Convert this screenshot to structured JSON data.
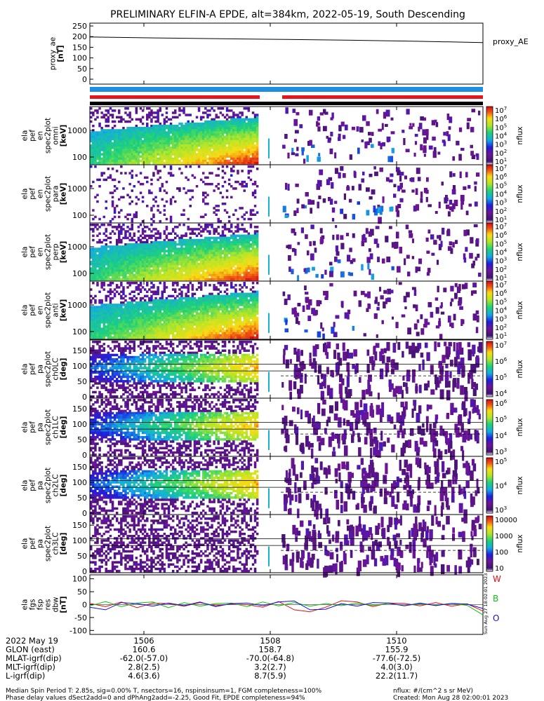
{
  "title": "PRELIMINARY ELFIN-A EPDE, alt=384km, 2022-05-19, South Descending",
  "colors": {
    "red": "#e8141b",
    "blue": "#1e8ee0",
    "line_red": "#e01010",
    "line_green": "#10c010",
    "line_blue": "#1010e0"
  },
  "panels": {
    "proxy": {
      "ylabel": "proxy_ae\n[nT]",
      "legend": "proxy_AE",
      "yticks": [
        "250",
        "200",
        "150",
        "100",
        "50",
        "0"
      ]
    },
    "energy": [
      {
        "ylabel": "ela\npef\nen\nspec2plot\nomni\n[keV]",
        "zlabel": "nflux",
        "yticks": [
          "1000",
          "100"
        ],
        "cticks": [
          "10^7",
          "10^6",
          "10^5",
          "10^4",
          "10^3",
          "10^2",
          "10^1"
        ]
      },
      {
        "ylabel": "ela\npef\nen\nspec2plot\npara\n[keV]",
        "zlabel": "nflux",
        "yticks": [
          "1000",
          "100"
        ],
        "cticks": [
          "10^7",
          "10^6",
          "10^5",
          "10^4",
          "10^3",
          "10^2",
          "10^1"
        ]
      },
      {
        "ylabel": "ela\npef\nen\nspec2plot\nperp\n[keV]",
        "zlabel": "nflux",
        "yticks": [
          "1000",
          "100"
        ],
        "cticks": [
          "10^7",
          "10^6",
          "10^5",
          "10^4",
          "10^3",
          "10^2",
          "10^1"
        ]
      },
      {
        "ylabel": "ela\npef\nen\nspec2plot\nanti\n[keV]",
        "zlabel": "nflux",
        "yticks": [
          "1000",
          "100"
        ],
        "cticks": [
          "10^7",
          "10^6",
          "10^5",
          "10^4",
          "10^3",
          "10^2",
          "10^1"
        ]
      }
    ],
    "pitch": [
      {
        "ylabel": "ela\npef\npa\nspec2plot\nch0LC\n[deg]",
        "zlabel": "nflux",
        "yticks": [
          "150",
          "100",
          "50",
          "0"
        ],
        "cticks": [
          "10^7",
          "10^6",
          "10^5",
          "10^4"
        ]
      },
      {
        "ylabel": "ela\npef\npa\nspec2plot\nch1LC\n[deg]",
        "zlabel": "nflux",
        "yticks": [
          "150",
          "100",
          "50",
          "0"
        ],
        "cticks": [
          "10^6",
          "10^5",
          "10^4",
          "10^3"
        ]
      },
      {
        "ylabel": "ela\npef\npa\nspec2plot\nch2LC\n[deg]",
        "zlabel": "nflux",
        "yticks": [
          "150",
          "100",
          "50",
          "0"
        ],
        "cticks": [
          "10^5",
          "10^4",
          "10^3"
        ]
      },
      {
        "ylabel": "ela\npef\npa\nspec2plot\nch3LC\n[deg]",
        "zlabel": "nflux",
        "yticks": [
          "150",
          "100",
          "50",
          "0"
        ],
        "cticks": [
          "10000",
          "1000",
          "100",
          "10"
        ]
      }
    ],
    "fgs": {
      "ylabel": "ela\nfgs\nfsp\nres\ndbw\n[nT]",
      "yticks": [
        "100",
        "50",
        "0",
        "-50",
        "-100"
      ],
      "legend": [
        "W",
        "B",
        "O"
      ]
    }
  },
  "xaxis": {
    "ticks": [
      "1506",
      "1508",
      "1510"
    ],
    "rows": [
      {
        "label": "2022 May 19",
        "values": [
          "",
          "",
          ""
        ]
      },
      {
        "label": "GLON (east)",
        "values": [
          "160.6",
          "158.7",
          "155.9"
        ]
      },
      {
        "label": "MLAT-igrf(dip)",
        "values": [
          "-62.0(-57.0)",
          "-70.0(-64.8)",
          "-77.6(-72.5)"
        ]
      },
      {
        "label": "MLT-igrf(dip)",
        "values": [
          "2.8(2.5)",
          "3.2(2.7)",
          "4.0(3.0)"
        ]
      },
      {
        "label": "L-igrf(dip)",
        "values": [
          "4.6(3.6)",
          "8.7(5.9)",
          "22.2(11.7)"
        ]
      }
    ]
  },
  "footer": {
    "line1": "Median Spin Period T: 2.85s, sig=0.00% T, nsectors=16, nspinsinsum=1, FGM completeness=100%",
    "line2": "Phase delay values dSect2add=0 and dPhAng2add=-2.25, Good Fit, EPDE completeness=94%",
    "right1": "nflux: #/(cm^2 s sr MeV)",
    "right2": "Created: Mon Aug 28 02:00:01 2023",
    "stamp": "Sun Aug 27 18:02:01 2023"
  },
  "chart_data": [
    {
      "type": "line",
      "title": "PRELIMINARY ELFIN-A EPDE, alt=384km, 2022-05-19, South Descending",
      "ylabel": "proxy_ae [nT]",
      "ylim": [
        0,
        260
      ],
      "x": [
        "1505",
        "1506",
        "1507",
        "1508",
        "1509",
        "1510",
        "1511"
      ],
      "series": [
        {
          "name": "proxy_AE",
          "values": [
            198,
            194,
            190,
            187,
            183,
            178,
            172
          ]
        }
      ]
    },
    {
      "type": "heatmap",
      "ylabel": "ela pef en spec2plot omni [keV]",
      "zlabel": "nflux",
      "log_y": true,
      "log_z": true
    },
    {
      "type": "heatmap",
      "ylabel": "ela pef en spec2plot para [keV]",
      "zlabel": "nflux",
      "log_y": true,
      "log_z": true
    },
    {
      "type": "heatmap",
      "ylabel": "ela pef en spec2plot perp [keV]",
      "zlabel": "nflux",
      "log_y": true,
      "log_z": true
    },
    {
      "type": "heatmap",
      "ylabel": "ela pef en spec2plot anti [keV]",
      "zlabel": "nflux",
      "log_y": true,
      "log_z": true
    },
    {
      "type": "heatmap",
      "ylabel": "ela pef pa spec2plot ch0LC [deg]",
      "zlabel": "nflux",
      "ylim": [
        0,
        180
      ],
      "log_z": true
    },
    {
      "type": "heatmap",
      "ylabel": "ela pef pa spec2plot ch1LC [deg]",
      "zlabel": "nflux",
      "ylim": [
        0,
        180
      ],
      "log_z": true
    },
    {
      "type": "heatmap",
      "ylabel": "ela pef pa spec2plot ch2LC [deg]",
      "zlabel": "nflux",
      "ylim": [
        0,
        180
      ],
      "log_z": true
    },
    {
      "type": "heatmap",
      "ylabel": "ela pef pa spec2plot ch3LC [deg]",
      "zlabel": "nflux",
      "ylim": [
        0,
        180
      ],
      "log_z": true
    },
    {
      "type": "line",
      "ylabel": "ela fgs fsp res dbw [nT]",
      "ylim": [
        -110,
        110
      ],
      "series": [
        {
          "name": "W",
          "values": [
            5,
            -8,
            10,
            -12,
            6,
            4,
            -6,
            8,
            -4,
            2,
            0,
            -10,
            12,
            -20,
            -28,
            -10,
            15,
            10,
            -8,
            6,
            5,
            -5,
            8,
            -6,
            3,
            -25
          ]
        },
        {
          "name": "B",
          "values": [
            -5,
            12,
            -8,
            6,
            10,
            -12,
            8,
            -6,
            4,
            6,
            -8,
            10,
            -5,
            8,
            -6,
            4,
            -4,
            6,
            -3,
            5,
            -4,
            3,
            -2,
            4,
            -3,
            -40
          ]
        },
        {
          "name": "O",
          "values": [
            -10,
            -20,
            8,
            4,
            -6,
            6,
            -4,
            10,
            -8,
            4,
            6,
            -4,
            10,
            14,
            -20,
            -18,
            4,
            -6,
            8,
            6,
            -5,
            6,
            -4,
            5,
            2,
            -15
          ]
        }
      ]
    }
  ]
}
